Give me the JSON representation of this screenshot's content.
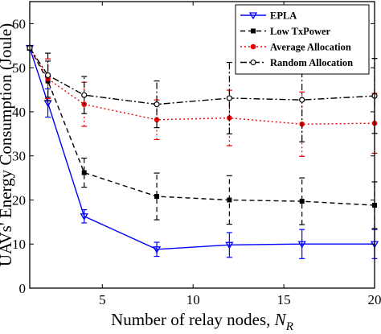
{
  "chart_data": {
    "type": "line",
    "title": "",
    "xlabel": "Number of relay nodes, ",
    "xlabel_subscript_var": "N",
    "xlabel_subscript": "R",
    "ylabel": "UAVs' Energy Consumption (Joule)",
    "xlim": [
      1,
      20
    ],
    "ylim": [
      0,
      65
    ],
    "xticks": [
      5,
      10,
      15,
      20
    ],
    "yticks": [
      0,
      10,
      20,
      30,
      40,
      50,
      60
    ],
    "grid": false,
    "legend_position": "top-right",
    "series": [
      {
        "name": "EPLA",
        "color": "#0000ff",
        "dash": "",
        "marker": "triangle-down",
        "x": [
          1,
          2,
          4,
          8,
          12,
          16,
          20
        ],
        "y": [
          54.5,
          42,
          16.3,
          8.8,
          9.8,
          10,
          10
        ],
        "err": [
          0.5,
          3.2,
          1.5,
          1.6,
          2.8,
          3.3,
          3.3
        ]
      },
      {
        "name": "Low TxPower",
        "color": "#000000",
        "dash": "6,4",
        "marker": "square",
        "x": [
          1,
          2,
          4,
          8,
          12,
          16,
          20
        ],
        "y": [
          54.5,
          47,
          26.2,
          20.8,
          20,
          19.7,
          18.8
        ],
        "err": [
          0.5,
          4.5,
          3.3,
          5.3,
          5.5,
          5.3,
          5.3
        ]
      },
      {
        "name": "Average Allocation",
        "color": "#ee0000",
        "dash": "2,3",
        "marker": "circle",
        "x": [
          1,
          2,
          4,
          8,
          12,
          16,
          20
        ],
        "y": [
          54.5,
          47.5,
          41.7,
          38.2,
          38.6,
          37.2,
          37.4
        ],
        "err": [
          0.5,
          4.5,
          5.0,
          4.5,
          6.3,
          7.3,
          6.8
        ]
      },
      {
        "name": "Random Allocation",
        "color": "#000000",
        "dash": "8,3,2,3",
        "marker": "circle-open",
        "x": [
          1,
          2,
          4,
          8,
          12,
          16,
          20
        ],
        "y": [
          54.5,
          48.3,
          43.8,
          41.7,
          43.1,
          42.7,
          43.6
        ],
        "err": [
          0.5,
          5.0,
          4.2,
          5.3,
          8.1,
          9.5,
          8.5
        ]
      }
    ]
  }
}
